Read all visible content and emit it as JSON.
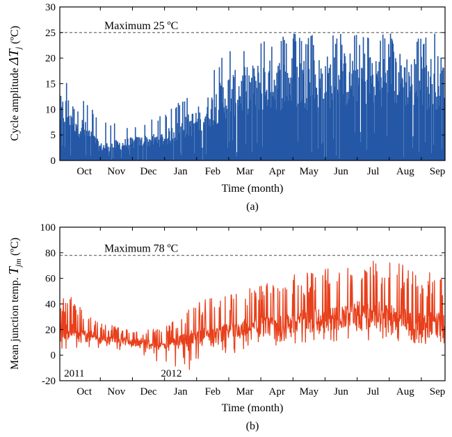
{
  "chart_data": [
    {
      "type": "bar",
      "caption": "(a)",
      "ylabel_text": "Cycle amplitude ",
      "ylabel_symbol": "ΔT",
      "ylabel_sub": "j",
      "ylabel_unit": " (ºC)",
      "xlabel": "Time (month)",
      "ylim": [
        0,
        30
      ],
      "yticks": [
        0,
        5,
        10,
        15,
        20,
        25,
        30
      ],
      "months": [
        "Oct",
        "Nov",
        "Dec",
        "Jan",
        "Feb",
        "Mar",
        "Apr",
        "May",
        "Jun",
        "Jul",
        "Aug",
        "Sep"
      ],
      "x_range_days": [
        -8,
        358
      ],
      "reference_line": {
        "value": 25,
        "label": "Maximum 25 ºC"
      },
      "series_color": "#2458a6",
      "monthly_envelope": [
        {
          "month": "Oct",
          "peak": 16,
          "typical": 11
        },
        {
          "month": "Nov",
          "peak": 8,
          "typical": 3
        },
        {
          "month": "Dec",
          "peak": 6.5,
          "typical": 4
        },
        {
          "month": "Jan",
          "peak": 9,
          "typical": 5
        },
        {
          "month": "Feb",
          "peak": 15,
          "typical": 9
        },
        {
          "month": "Mar",
          "peak": 22,
          "typical": 15
        },
        {
          "month": "Apr",
          "peak": 24,
          "typical": 17
        },
        {
          "month": "May",
          "peak": 25,
          "typical": 18
        },
        {
          "month": "Jun",
          "peak": 25,
          "typical": 18
        },
        {
          "month": "Jul",
          "peak": 25,
          "typical": 19
        },
        {
          "month": "Aug",
          "peak": 25,
          "typical": 19
        },
        {
          "month": "Sep",
          "peak": 25,
          "typical": 18
        }
      ]
    },
    {
      "type": "line",
      "caption": "(b)",
      "ylabel_text": "Mean junction temp. ",
      "ylabel_symbol": "T",
      "ylabel_sub": "jm",
      "ylabel_unit": " (ºC)",
      "xlabel": "Time (month)",
      "ylim": [
        -20,
        100
      ],
      "yticks": [
        -20,
        0,
        20,
        40,
        60,
        80,
        100
      ],
      "months": [
        "Oct",
        "Nov",
        "Dec",
        "Jan",
        "Feb",
        "Mar",
        "Apr",
        "May",
        "Jun",
        "Jul",
        "Aug",
        "Sep"
      ],
      "x_range_days": [
        -8,
        358
      ],
      "year_labels": [
        {
          "label": "2011",
          "day": 0
        },
        {
          "label": "2012",
          "day": 92
        }
      ],
      "reference_line": {
        "value": 78,
        "label": "Maximum 78 ºC"
      },
      "series_color": "#e8401c",
      "monthly_envelope": [
        {
          "month": "Oct",
          "low": 5,
          "base": 12,
          "peak": 48
        },
        {
          "month": "Nov",
          "low": 5,
          "base": 10,
          "peak": 25
        },
        {
          "month": "Dec",
          "low": 3,
          "base": 8,
          "peak": 20
        },
        {
          "month": "Jan",
          "low": -8,
          "base": 5,
          "peak": 22
        },
        {
          "month": "Feb",
          "low": -15,
          "base": 8,
          "peak": 42
        },
        {
          "month": "Mar",
          "low": 0,
          "base": 12,
          "peak": 48
        },
        {
          "month": "Apr",
          "low": 5,
          "base": 15,
          "peak": 55
        },
        {
          "month": "May",
          "low": 8,
          "base": 18,
          "peak": 63
        },
        {
          "month": "Jun",
          "low": 10,
          "base": 20,
          "peak": 68
        },
        {
          "month": "Jul",
          "low": 12,
          "base": 22,
          "peak": 75
        },
        {
          "month": "Aug",
          "low": 10,
          "base": 22,
          "peak": 75
        },
        {
          "month": "Sep",
          "low": 8,
          "base": 15,
          "peak": 65
        }
      ]
    }
  ]
}
